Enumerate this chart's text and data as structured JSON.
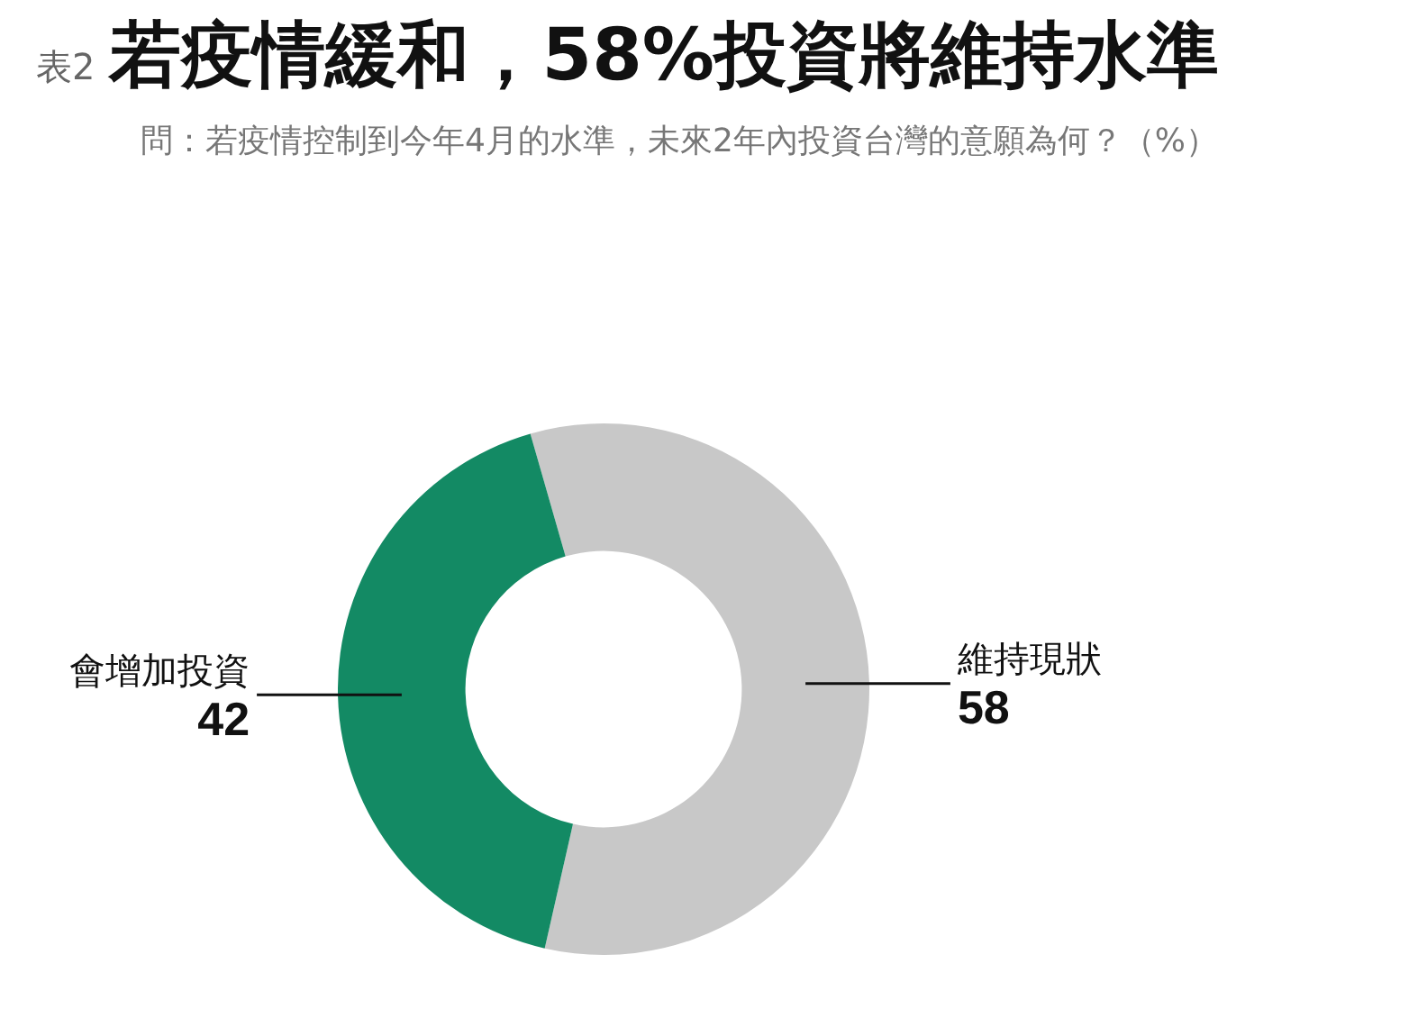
{
  "chart_data": {
    "type": "donut",
    "title": "若疫情緩和，58%投資將維持水準",
    "subtitle": "問：若疫情控制到今年4月的水準，未來2年內投資台灣的意願為何？（%）",
    "annotations": [
      "表2"
    ],
    "categories": [
      "維持現狀",
      "會增加投資"
    ],
    "values": [
      58,
      42
    ],
    "colors": [
      "#c8c8c8",
      "#138a64"
    ],
    "data_labels": true,
    "legend": false
  }
}
